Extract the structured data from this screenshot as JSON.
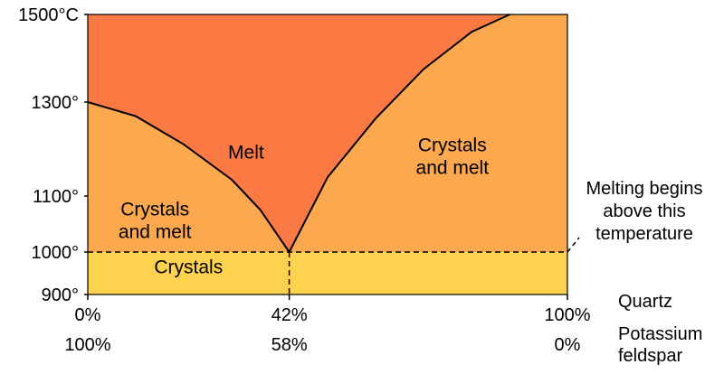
{
  "chart_data": {
    "type": "area",
    "title": "",
    "xlabel": "",
    "ylabel": "",
    "y_unit_label": "1500°C",
    "ylim": [
      900,
      1500
    ],
    "xlim": [
      0,
      100
    ],
    "y_ticks": [
      {
        "value": 1500,
        "label": "1500°C"
      },
      {
        "value": 1300,
        "label": "1300°"
      },
      {
        "value": 1100,
        "label": "1100°"
      },
      {
        "value": 1000,
        "label": "1000°"
      },
      {
        "value": 900,
        "label": "900°"
      }
    ],
    "x_rows": [
      {
        "component": "Quartz",
        "ticks": [
          {
            "x": 0,
            "label": "0%"
          },
          {
            "x": 42,
            "label": "42%"
          },
          {
            "x": 100,
            "label": "100%"
          }
        ]
      },
      {
        "component": "Potassium feldspar",
        "component_lines": [
          "Potassium",
          "feldspar"
        ],
        "ticks": [
          {
            "x": 0,
            "label": "100%"
          },
          {
            "x": 42,
            "label": "58%"
          },
          {
            "x": 100,
            "label": "0%"
          }
        ]
      }
    ],
    "eutectic": {
      "x": 42,
      "y": 1000
    },
    "liquidus_left": [
      [
        0,
        1300
      ],
      [
        10,
        1270
      ],
      [
        20,
        1210
      ],
      [
        30,
        1135
      ],
      [
        36,
        1075
      ],
      [
        42,
        1000
      ]
    ],
    "liquidus_right": [
      [
        42,
        1000
      ],
      [
        50,
        1140
      ],
      [
        60,
        1265
      ],
      [
        70,
        1375
      ],
      [
        80,
        1460
      ],
      [
        88,
        1500
      ]
    ],
    "solidus_temp": 1000,
    "regions": [
      {
        "name": "melt",
        "label": "Melt",
        "color": "#fb7a44",
        "label_x": 33,
        "label_y": 1180
      },
      {
        "name": "crystals-and-melt-left",
        "label_lines": [
          "Crystals",
          "and melt"
        ],
        "color": "#fba84f",
        "label_x": 14,
        "label_y": 1065
      },
      {
        "name": "crystals-and-melt-right",
        "label_lines": [
          "Crystals",
          "and melt"
        ],
        "color": "#fba84f",
        "label_x": 76,
        "label_y": 1195
      },
      {
        "name": "crystals",
        "label": "Crystals",
        "color": "#fcd24f",
        "label_x": 21,
        "label_y": 950
      }
    ],
    "annotation": {
      "lines": [
        "Melting begins",
        "above this",
        "temperature"
      ]
    },
    "grid": false
  }
}
